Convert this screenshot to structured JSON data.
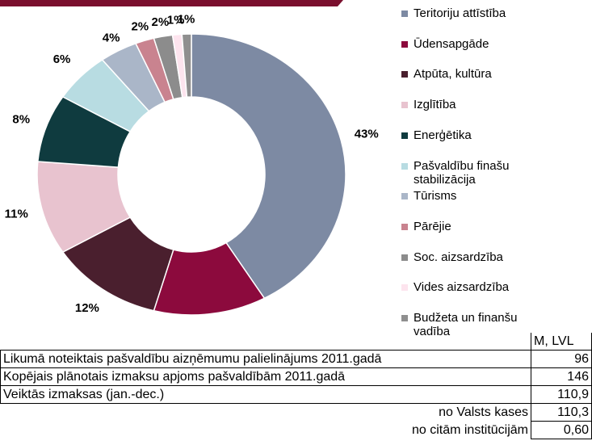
{
  "chart_data": {
    "type": "pie",
    "hole": true,
    "categories": [
      "Teritoriju attīstība",
      "Ūdensapgāde",
      "Atpūta, kultūra",
      "Izglītība",
      "Enerģētika",
      "Pašvaldību finašu stabilizācija",
      "Tūrisms",
      "Pārējie",
      "Soc. aizsardzība",
      "Vides aizsardzība",
      "Budžeta un finanšu vadība"
    ],
    "values": [
      43,
      12,
      12,
      11,
      8,
      6,
      4,
      2,
      2,
      1,
      1
    ],
    "value_labels": [
      "43%",
      "12%",
      "12%",
      "11%",
      "8%",
      "6%",
      "4%",
      "2%",
      "2%",
      "1%",
      "1%"
    ],
    "colors": [
      "#7d8aa3",
      "#8c0a3d",
      "#4a1f2e",
      "#e8c3cf",
      "#0f3b3f",
      "#b8dce2",
      "#aab6c8",
      "#c9838f",
      "#8c8c8c",
      "#fde4ee",
      "#8f8f8f"
    ]
  },
  "table": {
    "unit": "M, LVL",
    "rows": [
      [
        "Likumā noteiktais pašvaldību aizņēmumu palielinājums 2011.gadā",
        "96"
      ],
      [
        "Kopējais plānotais izmaksu apjoms pašvaldībām 2011.gadā",
        "146"
      ],
      [
        "Veiktās izmaksas (jan.-dec.)",
        "110,9"
      ]
    ],
    "subrows": [
      [
        "no Valsts kases",
        "110,3"
      ],
      [
        "no citām institūcijām",
        "0,60"
      ]
    ]
  }
}
